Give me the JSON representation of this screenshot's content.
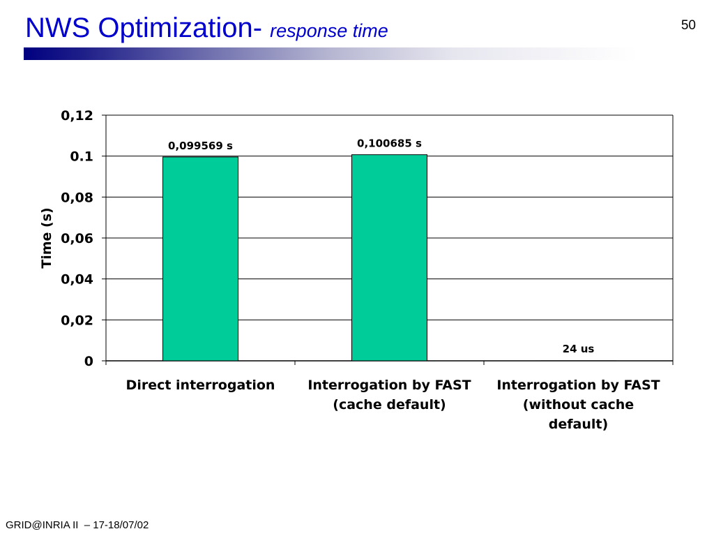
{
  "slide": {
    "title_main": "NWS Optimization- ",
    "title_sub": "response time",
    "page_number": "50",
    "footer": "GRID@INRIA II  – 17-18/07/02",
    "colors": {
      "title": "#0000cc",
      "bar_fill": "#00cc99",
      "underline_start": "#000080"
    }
  },
  "chart_data": {
    "type": "bar",
    "categories": [
      [
        "Direct interrogation"
      ],
      [
        "Interrogation by FAST",
        "(cache default)"
      ],
      [
        "Interrogation by FAST",
        "(without cache",
        "default)"
      ]
    ],
    "values": [
      0.099569,
      0.100685,
      2.4e-05
    ],
    "data_labels": [
      "0,099569 s",
      "0,100685 s",
      "24 us"
    ],
    "ylabel": "Time (s)",
    "xlabel": "",
    "ylim": [
      0,
      0.12
    ],
    "yticks": [
      0,
      0.02,
      0.04,
      0.06,
      0.08,
      0.1,
      0.12
    ],
    "ytick_labels": [
      "0",
      "0,02",
      "0,04",
      "0,06",
      "0,08",
      "0.1",
      "0,12"
    ],
    "grid": true,
    "legend": "none",
    "bar_color": "#00cc99"
  }
}
